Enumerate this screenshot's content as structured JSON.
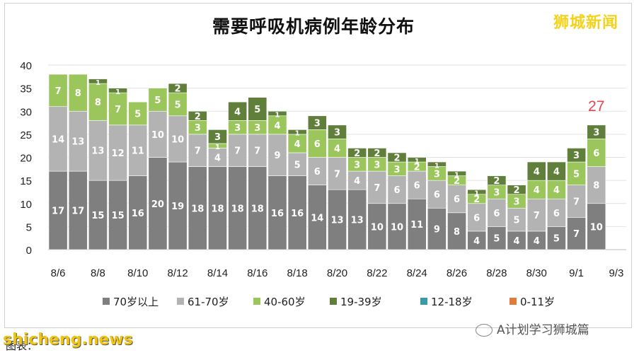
{
  "title": "需要呼吸机病例年龄分布",
  "brand": "狮城新闻",
  "watermark": "shicheng.news",
  "source_text": "图表：",
  "wechat_account": "A计划学习狮城篇",
  "chart_data": {
    "type": "bar",
    "stacked": true,
    "title": "需要呼吸机病例年龄分布",
    "categories": [
      "8/6",
      "8/7",
      "8/8",
      "8/9",
      "8/10",
      "8/11",
      "8/12",
      "8/13",
      "8/14",
      "8/15",
      "8/16",
      "8/17",
      "8/18",
      "8/19",
      "8/20",
      "8/21",
      "8/22",
      "8/23",
      "8/24",
      "8/25",
      "8/26",
      "8/27",
      "8/28",
      "8/29",
      "8/30",
      "8/31",
      "9/1",
      "9/2",
      "9/3"
    ],
    "x_tick_labels": [
      "8/6",
      "8/8",
      "8/10",
      "8/12",
      "8/14",
      "8/16",
      "8/18",
      "8/20",
      "8/22",
      "8/24",
      "8/26",
      "8/28",
      "8/30",
      "9/1",
      "9/3"
    ],
    "ylim": [
      0,
      40
    ],
    "y_ticks": [
      0,
      5,
      10,
      15,
      20,
      25,
      30,
      35,
      40
    ],
    "grid": true,
    "legend_position": "bottom",
    "series": [
      {
        "name": "70岁以上",
        "color": "#7f7f7f",
        "text_color": "#ffffff",
        "values": [
          17,
          17,
          15,
          15,
          16,
          20,
          19,
          18,
          18,
          18,
          18,
          16,
          16,
          14,
          13,
          13,
          10,
          10,
          11,
          9,
          8,
          4,
          5,
          4,
          4,
          5,
          7,
          10,
          null
        ]
      },
      {
        "name": "61-70岁",
        "color": "#b3b3b3",
        "text_color": "#ffffff",
        "values": [
          14,
          13,
          13,
          12,
          11,
          10,
          10,
          7,
          4,
          7,
          7,
          9,
          5,
          6,
          7,
          4,
          7,
          6,
          6,
          6,
          6,
          6,
          6,
          5,
          7,
          6,
          7,
          8,
          null
        ]
      },
      {
        "name": "40-60岁",
        "color": "#9bc65c",
        "text_color": "#ffffff",
        "values": [
          7,
          8,
          8,
          7,
          5,
          5,
          5,
          3,
          1,
          3,
          3,
          4,
          4,
          6,
          4,
          3,
          3,
          3,
          2,
          3,
          2,
          2,
          3,
          3,
          4,
          4,
          5,
          6,
          null
        ]
      },
      {
        "name": "19-39岁",
        "color": "#5f7f3a",
        "text_color": "#ffffff",
        "values": [
          0,
          0,
          1,
          1,
          0,
          0,
          2,
          2,
          3,
          4,
          5,
          1,
          1,
          3,
          3,
          2,
          2,
          2,
          1,
          1,
          1,
          1,
          2,
          2,
          4,
          4,
          3,
          3,
          null
        ]
      },
      {
        "name": "12-18岁",
        "color": "#3a9aa8",
        "text_color": "#ffffff",
        "values": [
          0,
          0,
          0,
          0,
          0,
          0,
          0,
          0,
          0,
          0,
          0,
          0,
          0,
          0,
          0,
          0,
          0,
          0,
          0,
          0,
          0,
          0,
          0,
          0,
          0,
          0,
          0,
          0,
          null
        ]
      },
      {
        "name": "0-11岁",
        "color": "#e07b39",
        "text_color": "#ffffff",
        "values": [
          0,
          0,
          0,
          0,
          0,
          0,
          0,
          0,
          0,
          0,
          0,
          0,
          0,
          0,
          0,
          0,
          0,
          0,
          0,
          0,
          0,
          0,
          0,
          0,
          0,
          0,
          0,
          0,
          null
        ]
      }
    ],
    "annotations": [
      {
        "category": "9/2",
        "text": "27",
        "color": "#e8434f"
      }
    ]
  }
}
